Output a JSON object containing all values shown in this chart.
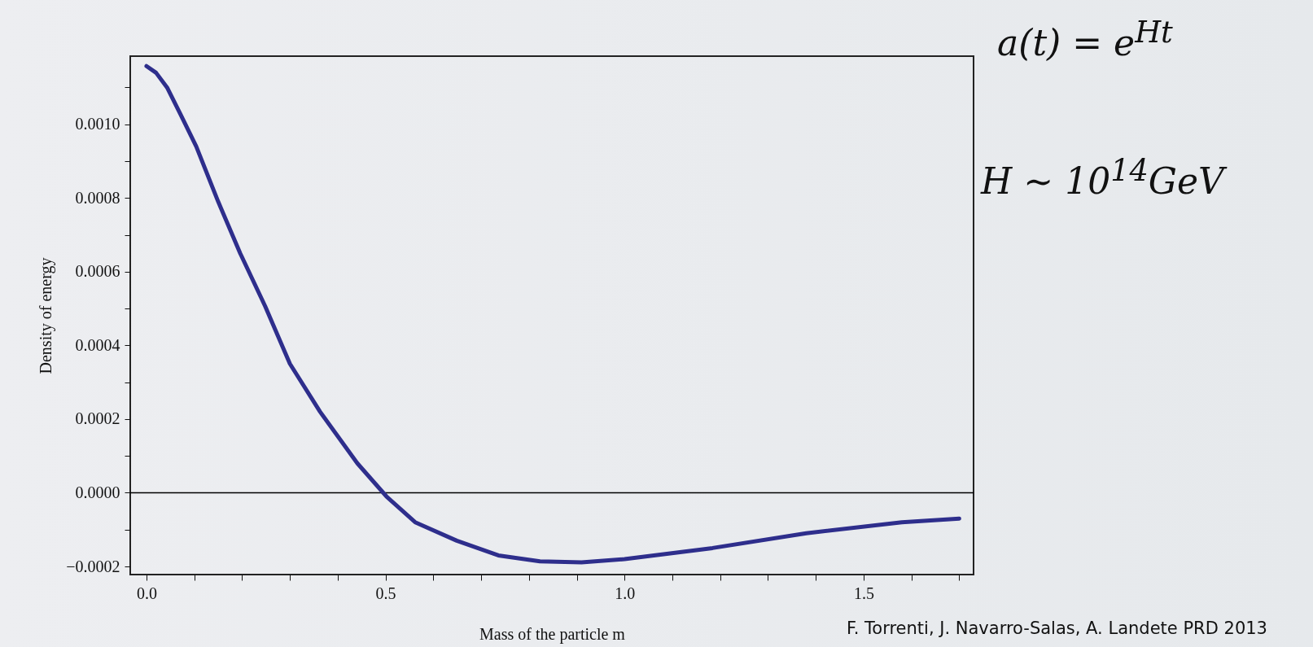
{
  "chart_data": {
    "type": "line",
    "xlabel": "Mass of the particle m",
    "ylabel": "Density of energy",
    "annotations": [
      "a(t) = e$^{Ht}$",
      "H ∼ 10$^{14}$GeV",
      "F. Torrenti, J. Navarro-Salas, A. Landete PRD 2013"
    ],
    "series": [
      {
        "color": "#2e2e8c",
        "x": [
          0,
          0.02,
          0.043,
          0.07,
          0.104,
          0.15,
          0.196,
          0.248,
          0.3,
          0.363,
          0.441,
          0.502,
          0.562,
          0.649,
          0.736,
          0.823,
          0.91,
          1.0,
          1.184,
          1.38,
          1.58,
          1.7
        ],
        "values": [
          0.001158,
          0.00114,
          0.0011,
          0.00103,
          0.00094,
          0.00079,
          0.00065,
          0.000507,
          0.00035,
          0.00022,
          8e-05,
          -1e-05,
          -8e-05,
          -0.00013,
          -0.00017,
          -0.000186,
          -0.000189,
          -0.00018,
          -0.00015,
          -0.00011,
          -8e-05,
          -7e-05
        ]
      }
    ],
    "xlim": [
      -0.034,
      1.73
    ],
    "ylim": [
      -0.000222,
      0.001185
    ],
    "xticks": [
      {
        "value": 0,
        "label": "0.0"
      },
      {
        "value": 0.1,
        "label": null
      },
      {
        "value": 0.2,
        "label": null
      },
      {
        "value": 0.3,
        "label": null
      },
      {
        "value": 0.4,
        "label": null
      },
      {
        "value": 0.5,
        "label": "0.5"
      },
      {
        "value": 0.6,
        "label": null
      },
      {
        "value": 0.7,
        "label": null
      },
      {
        "value": 0.8,
        "label": null
      },
      {
        "value": 0.9,
        "label": null
      },
      {
        "value": 1,
        "label": "1.0"
      },
      {
        "value": 1.1,
        "label": null
      },
      {
        "value": 1.2,
        "label": null
      },
      {
        "value": 1.3,
        "label": null
      },
      {
        "value": 1.4,
        "label": null
      },
      {
        "value": 1.5,
        "label": "1.5"
      },
      {
        "value": 1.6,
        "label": null
      },
      {
        "value": 1.7,
        "label": null
      }
    ],
    "yticks": [
      {
        "value": -0.0002,
        "label": "−0.0002"
      },
      {
        "value": -0.0001,
        "label": null
      },
      {
        "value": 0,
        "label": "0.0000"
      },
      {
        "value": 0.0001,
        "label": null
      },
      {
        "value": 0.0002,
        "label": "0.0002"
      },
      {
        "value": 0.0003,
        "label": null
      },
      {
        "value": 0.0004,
        "label": "0.0004"
      },
      {
        "value": 0.0005,
        "label": null
      },
      {
        "value": 0.0006,
        "label": "0.0006"
      },
      {
        "value": 0.0007,
        "label": null
      },
      {
        "value": 0.0008,
        "label": "0.0008"
      },
      {
        "value": 0.0009,
        "label": null
      },
      {
        "value": 0.001,
        "label": "0.0010"
      },
      {
        "value": 0.0011,
        "label": null
      }
    ],
    "ref_lines": [
      {
        "axis": "y",
        "value": 0,
        "color": "#000000"
      }
    ],
    "grid": false
  }
}
